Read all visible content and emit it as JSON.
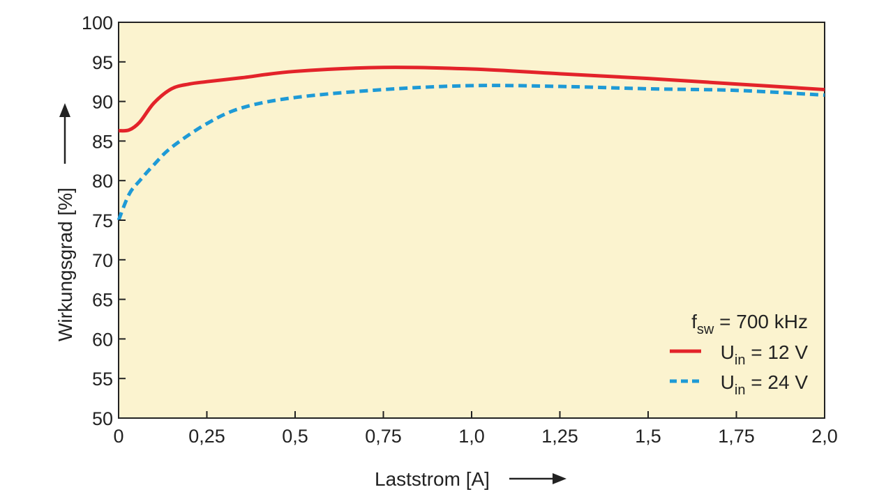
{
  "chart_data": {
    "type": "line",
    "title": "",
    "xlabel": "Laststrom [A]",
    "ylabel": "Wirkungsgrad [%]",
    "xlim": [
      0,
      2.0
    ],
    "ylim": [
      50,
      100
    ],
    "xticks": [
      0,
      0.25,
      0.5,
      0.75,
      1.0,
      1.25,
      1.5,
      1.75,
      2.0
    ],
    "xtick_labels": [
      "0",
      "0,25",
      "0,5",
      "0,75",
      "1,0",
      "1,25",
      "1,5",
      "1,75",
      "2,0"
    ],
    "yticks": [
      50,
      55,
      60,
      65,
      70,
      75,
      80,
      85,
      90,
      95,
      100
    ],
    "ytick_labels": [
      "50",
      "55",
      "60",
      "65",
      "70",
      "75",
      "80",
      "85",
      "90",
      "95",
      "100"
    ],
    "grid": false,
    "background": "#FBF3CF",
    "legend": {
      "position": "bottom-right",
      "title_main": "f",
      "title_sub": "sw",
      "title_rest": " = 700 kHz"
    },
    "series": [
      {
        "name": "Uin = 12 V",
        "label_main": "U",
        "label_sub": "in",
        "label_rest": " = 12 V",
        "color": "#E3232A",
        "style": "solid",
        "x": [
          0,
          0.03,
          0.06,
          0.1,
          0.15,
          0.2,
          0.25,
          0.35,
          0.5,
          0.75,
          1.0,
          1.25,
          1.5,
          1.75,
          2.0
        ],
        "y": [
          86.3,
          86.4,
          87.4,
          89.8,
          91.6,
          92.2,
          92.5,
          93.0,
          93.8,
          94.3,
          94.1,
          93.5,
          92.9,
          92.2,
          91.5
        ]
      },
      {
        "name": "Uin = 24 V",
        "label_main": "U",
        "label_sub": "in",
        "label_rest": " = 24 V",
        "color": "#1E9AD6",
        "style": "dashed",
        "x": [
          0,
          0.03,
          0.06,
          0.1,
          0.15,
          0.25,
          0.35,
          0.5,
          0.75,
          1.0,
          1.25,
          1.5,
          1.75,
          2.0
        ],
        "y": [
          75.0,
          78.3,
          80.0,
          82.0,
          84.2,
          87.2,
          89.2,
          90.5,
          91.5,
          92.0,
          91.9,
          91.6,
          91.4,
          90.8
        ]
      }
    ]
  }
}
